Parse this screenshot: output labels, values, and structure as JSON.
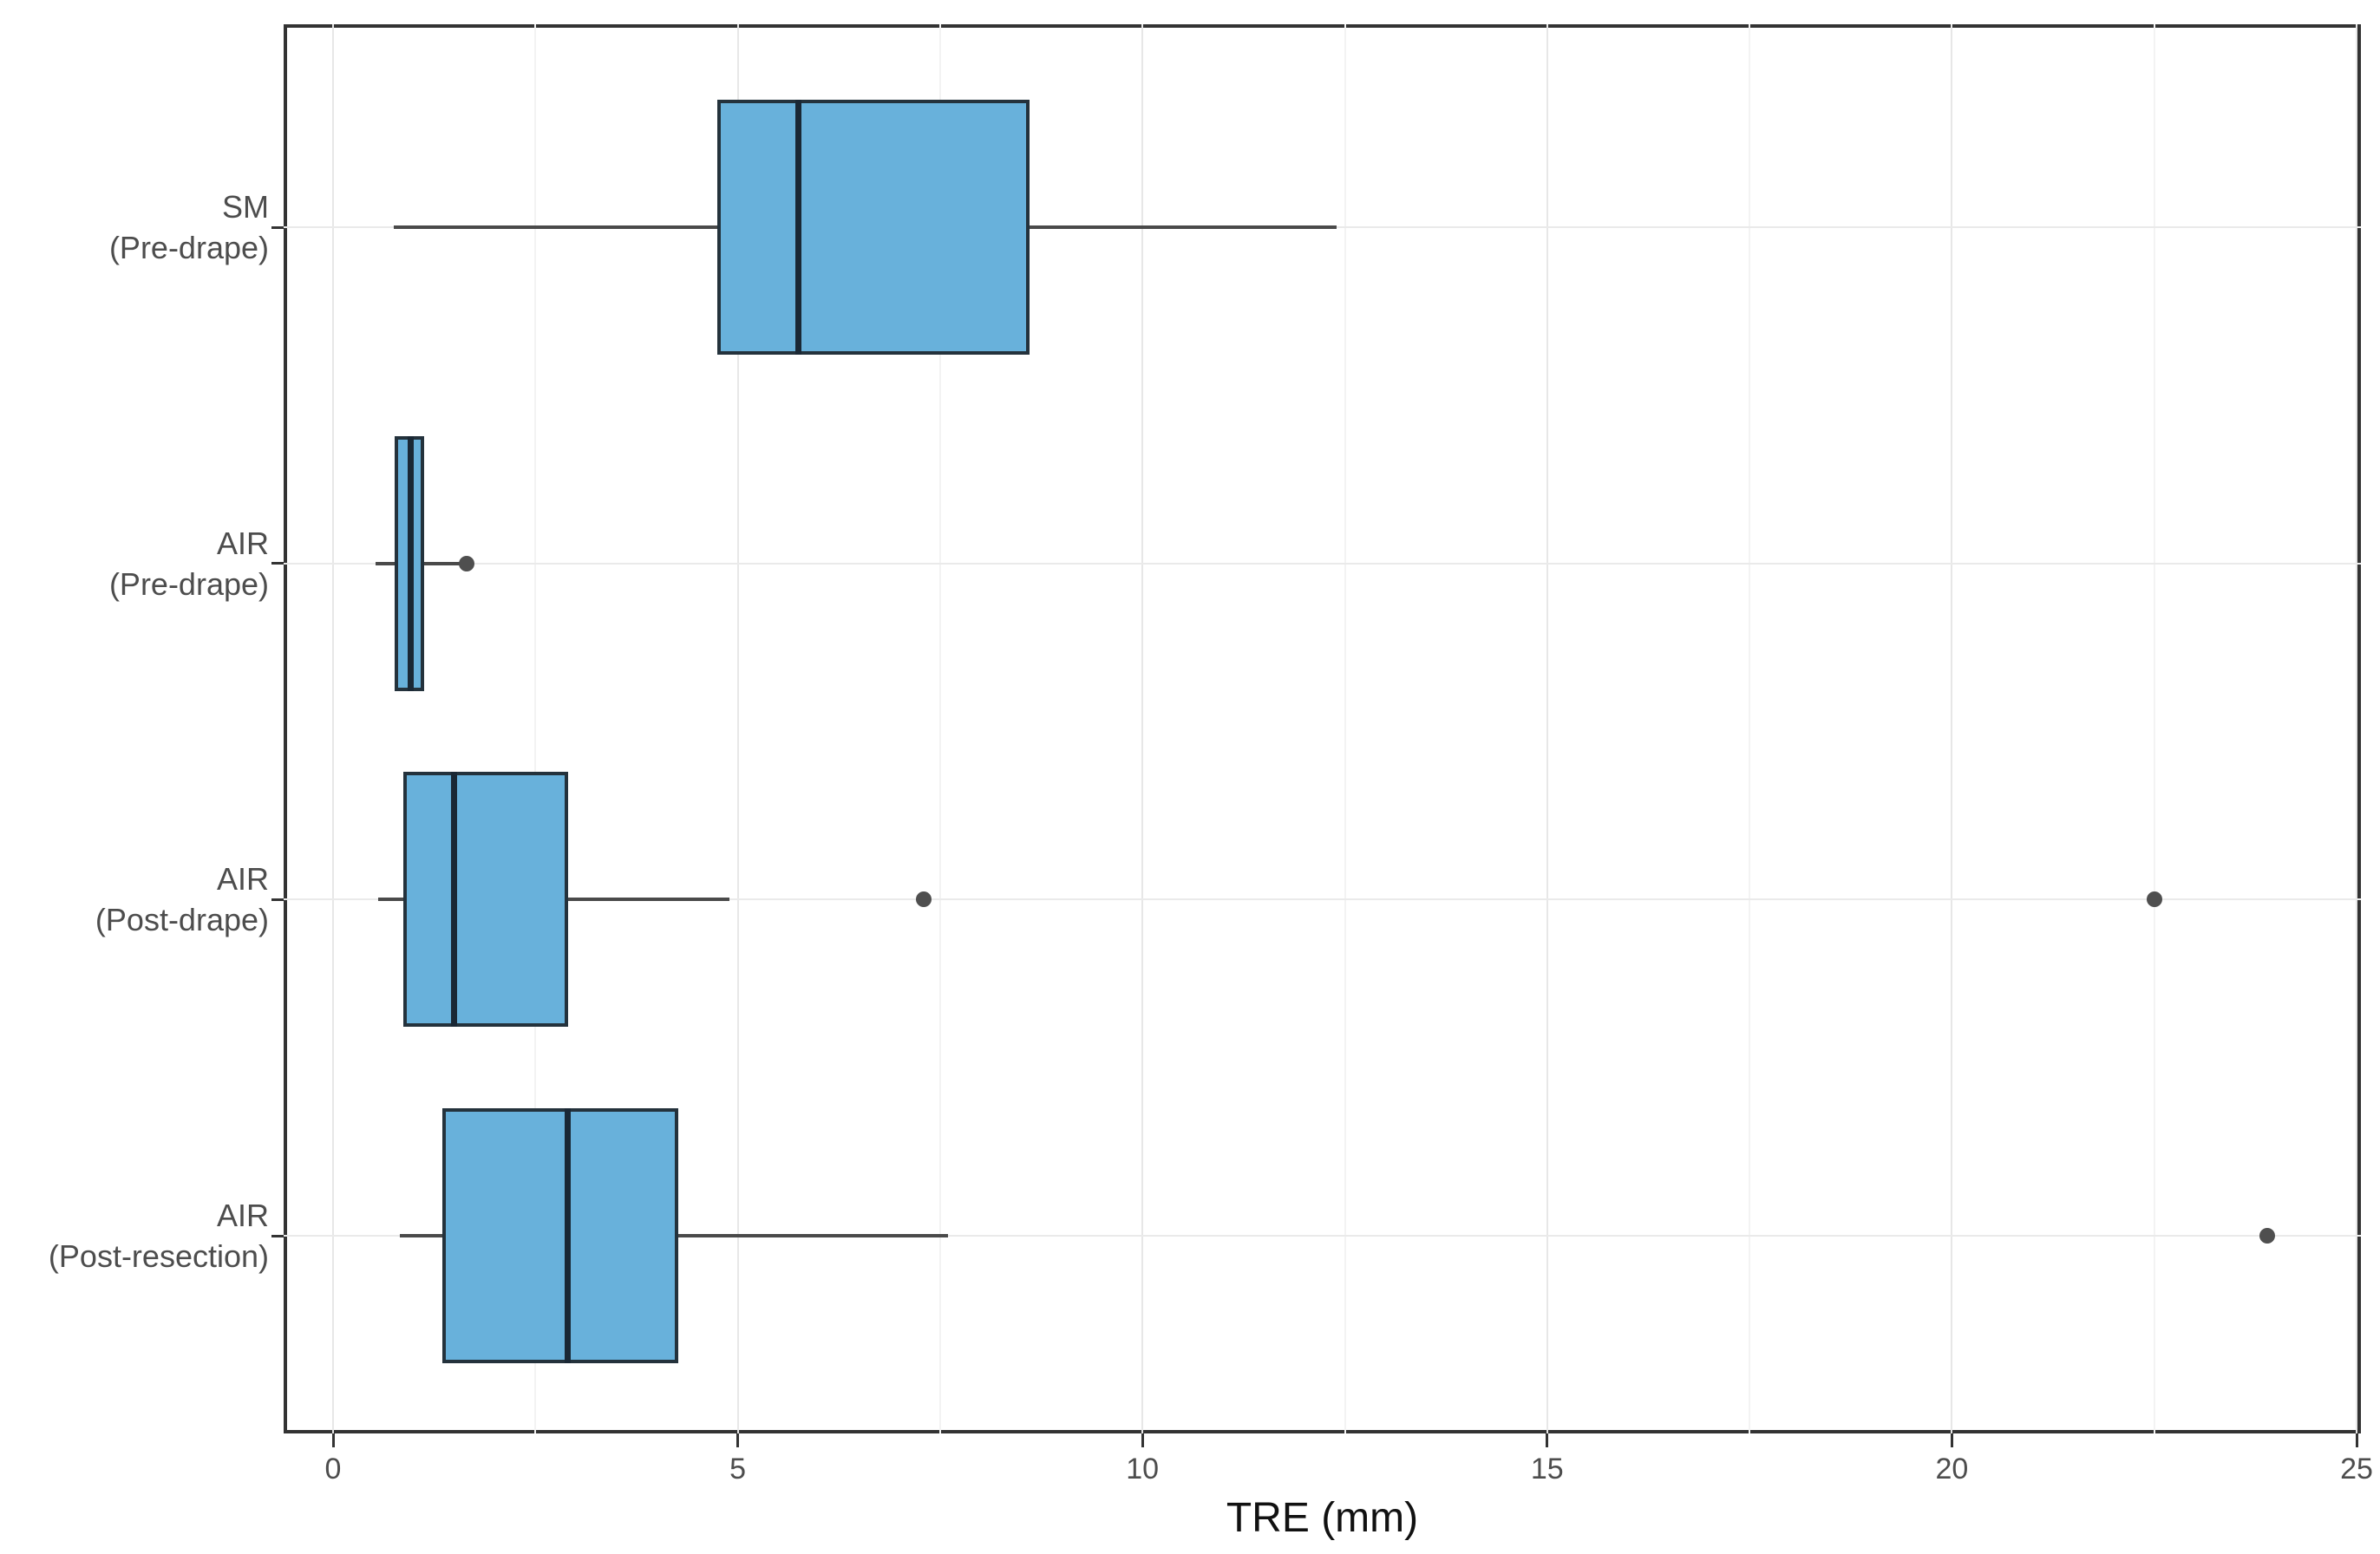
{
  "chart_data": {
    "type": "boxplot",
    "orientation": "horizontal",
    "title": "",
    "xlabel": "TRE (mm)",
    "ylabel": "",
    "xlim": [
      0,
      25
    ],
    "x_major_ticks": [
      0,
      5,
      10,
      15,
      20,
      25
    ],
    "x_minor_ticks": [
      2.5,
      7.5,
      12.5,
      17.5,
      22.5
    ],
    "grid": "on",
    "legend": "none",
    "categories": [
      {
        "label_line1": "SM",
        "label_line2": "(Pre-drape)",
        "whisker_low": 0.75,
        "q1": 4.75,
        "median": 5.75,
        "q3": 8.6,
        "whisker_high": 12.4,
        "outliers": []
      },
      {
        "label_line1": "AIR",
        "label_line2": "(Pre-drape)",
        "whisker_low": 0.53,
        "q1": 0.76,
        "median": 0.96,
        "q3": 1.12,
        "whisker_high": 1.56,
        "outliers": [
          1.65
        ]
      },
      {
        "label_line1": "AIR",
        "label_line2": "(Post-drape)",
        "whisker_low": 0.56,
        "q1": 0.87,
        "median": 1.5,
        "q3": 2.9,
        "whisker_high": 4.9,
        "outliers": [
          7.3,
          22.5
        ]
      },
      {
        "label_line1": "AIR",
        "label_line2": "(Post-resection)",
        "whisker_low": 0.83,
        "q1": 1.35,
        "median": 2.9,
        "q3": 4.26,
        "whisker_high": 7.6,
        "outliers": [
          23.9
        ]
      }
    ],
    "colors": {
      "box_fill": "#68B1DB",
      "box_border": "#24323C",
      "median": "#1A2835",
      "whisker": "#4A4A4A",
      "outlier": "#4F4F4F",
      "grid_major": "#E7E7E7",
      "grid_minor": "#F3F3F3",
      "grid_row": "#EAEAEA",
      "panel_border": "#333333",
      "panel_background": "#FFFFFF",
      "tick_mark": "#333333",
      "tick_label": "#4D4D4D",
      "category_label": "#4D4D4D",
      "axis_title": "#111111"
    }
  }
}
